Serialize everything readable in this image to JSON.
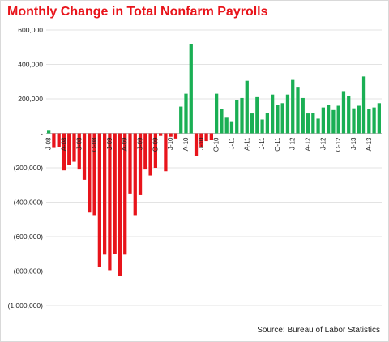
{
  "chart_data": {
    "type": "bar",
    "title": "Monthly Change in Total Nonfarm Payrolls",
    "source": "Source: Bureau of Labor Statistics",
    "ylim": [
      -1000000,
      600000
    ],
    "ytick_values": [
      600000,
      400000,
      200000,
      0,
      -200000,
      -400000,
      -600000,
      -800000,
      -1000000
    ],
    "ytick_labels": [
      "600,000",
      "400,000",
      "200,000",
      "-",
      "(200,000)",
      "(400,000)",
      "(600,000)",
      "(800,000)",
      "(1,000,000)"
    ],
    "grid": true,
    "colors": {
      "positive": "#1aaf54",
      "negative": "#e8141b"
    },
    "x_tick_labels": [
      {
        "index": 0,
        "label": "J-08"
      },
      {
        "index": 3,
        "label": "A-08"
      },
      {
        "index": 6,
        "label": "J-08"
      },
      {
        "index": 9,
        "label": "O-08"
      },
      {
        "index": 12,
        "label": "J-09"
      },
      {
        "index": 15,
        "label": "A-09"
      },
      {
        "index": 18,
        "label": "J-09"
      },
      {
        "index": 21,
        "label": "O-09"
      },
      {
        "index": 24,
        "label": "J-10"
      },
      {
        "index": 27,
        "label": "A-10"
      },
      {
        "index": 30,
        "label": "J-10"
      },
      {
        "index": 33,
        "label": "O-10"
      },
      {
        "index": 36,
        "label": "J-11"
      },
      {
        "index": 39,
        "label": "A-11"
      },
      {
        "index": 42,
        "label": "J-11"
      },
      {
        "index": 45,
        "label": "O-11"
      },
      {
        "index": 48,
        "label": "J-12"
      },
      {
        "index": 51,
        "label": "A-12"
      },
      {
        "index": 54,
        "label": "J-12"
      },
      {
        "index": 57,
        "label": "O-12"
      },
      {
        "index": 60,
        "label": "J-13"
      },
      {
        "index": 63,
        "label": "A-13"
      }
    ],
    "categories": [
      "Jan-08",
      "Feb-08",
      "Mar-08",
      "Apr-08",
      "May-08",
      "Jun-08",
      "Jul-08",
      "Aug-08",
      "Sep-08",
      "Oct-08",
      "Nov-08",
      "Dec-08",
      "Jan-09",
      "Feb-09",
      "Mar-09",
      "Apr-09",
      "May-09",
      "Jun-09",
      "Jul-09",
      "Aug-09",
      "Sep-09",
      "Oct-09",
      "Nov-09",
      "Dec-09",
      "Jan-10",
      "Feb-10",
      "Mar-10",
      "Apr-10",
      "May-10",
      "Jun-10",
      "Jul-10",
      "Aug-10",
      "Sep-10",
      "Oct-10",
      "Nov-10",
      "Dec-10",
      "Jan-11",
      "Feb-11",
      "Mar-11",
      "Apr-11",
      "May-11",
      "Jun-11",
      "Jul-11",
      "Aug-11",
      "Sep-11",
      "Oct-11",
      "Nov-11",
      "Dec-11",
      "Jan-12",
      "Feb-12",
      "Mar-12",
      "Apr-12",
      "May-12",
      "Jun-12",
      "Jul-12",
      "Aug-12",
      "Sep-12",
      "Oct-12",
      "Nov-12",
      "Dec-12",
      "Jan-13",
      "Feb-13",
      "Mar-13",
      "Apr-13",
      "May-13",
      "Jun-13"
    ],
    "values": [
      15000,
      -85000,
      -80000,
      -215000,
      -185000,
      -165000,
      -210000,
      -270000,
      -460000,
      -475000,
      -775000,
      -705000,
      -795000,
      -700000,
      -830000,
      -705000,
      -350000,
      -475000,
      -355000,
      -210000,
      -245000,
      -200000,
      -15000,
      -220000,
      -20000,
      -30000,
      155000,
      230000,
      520000,
      -130000,
      -80000,
      -45000,
      -40000,
      230000,
      140000,
      95000,
      70000,
      195000,
      205000,
      305000,
      115000,
      210000,
      80000,
      120000,
      225000,
      165000,
      175000,
      225000,
      310000,
      270000,
      205000,
      115000,
      120000,
      85000,
      150000,
      165000,
      135000,
      160000,
      245000,
      215000,
      145000,
      160000,
      330000,
      140000,
      150000,
      175000
    ]
  }
}
